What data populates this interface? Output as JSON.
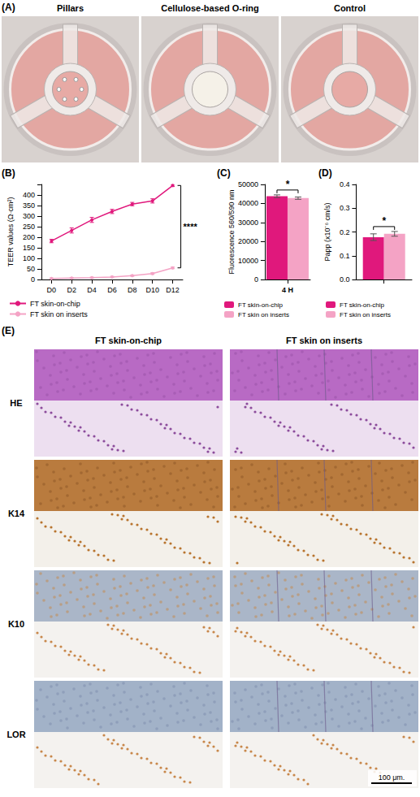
{
  "panel_labels": [
    "(A)",
    "(B)",
    "(C)",
    "(D)",
    "(E)"
  ],
  "photos": {
    "titles": [
      "Pillars",
      "Cellulose-based O-ring",
      "Control"
    ]
  },
  "chart_data": [
    {
      "type": "line",
      "categories": [
        "D0",
        "D2",
        "D4",
        "D6",
        "D8",
        "D10",
        "D12"
      ],
      "series": [
        {
          "name": "FT skin-on-chip",
          "color": "#e0187c",
          "values": [
            182,
            232,
            282,
            322,
            357,
            372,
            445
          ],
          "errors": [
            8,
            12,
            12,
            10,
            8,
            10,
            5
          ]
        },
        {
          "name": "FT skin on inserts",
          "color": "#f4a3c5",
          "values": [
            5,
            7,
            9,
            12,
            18,
            28,
            55
          ],
          "errors": [
            2,
            2,
            2,
            3,
            3,
            4,
            4
          ]
        }
      ],
      "ylim": [
        0,
        450
      ],
      "yticks": [
        0,
        50,
        100,
        150,
        200,
        250,
        300,
        350,
        400
      ],
      "y_label": "TEER values (Ω·cm²)",
      "annotations": [
        "****"
      ],
      "marker": "circle",
      "grid": false,
      "legend": "bottom"
    },
    {
      "type": "bar",
      "categories": [
        "4 H"
      ],
      "series": [
        {
          "name": "FT skin-on-chip",
          "color": "#e0187c",
          "values": [
            43800
          ],
          "errors": [
            700
          ]
        },
        {
          "name": "FT skin on inserts",
          "color": "#f4a3c5",
          "values": [
            42800
          ],
          "errors": [
            600
          ]
        }
      ],
      "ylim": [
        0,
        50000
      ],
      "yticks": [
        0,
        10000,
        20000,
        30000,
        40000,
        50000
      ],
      "y_label": "Fluorescence 560/590 nm",
      "annotations": [
        "*"
      ],
      "grid": false,
      "legend": "bottom"
    },
    {
      "type": "bar",
      "categories": [
        null
      ],
      "series": [
        {
          "name": "FT skin-on-chip",
          "color": "#e0187c",
          "values": [
            0.178
          ],
          "errors": [
            0.014
          ]
        },
        {
          "name": "FT skin on inserts",
          "color": "#f4a3c5",
          "values": [
            0.192
          ],
          "errors": [
            0.01
          ]
        }
      ],
      "ylim": [
        0,
        0.4
      ],
      "yticks": [
        {
          "value": 0,
          "label": "0.0"
        },
        0.1,
        0.2,
        0.3,
        0.4
      ],
      "y_label": "Papp (x10⁻⁶ cm/s)",
      "annotations": [
        "*"
      ],
      "grid": false,
      "legend": "bottom"
    }
  ],
  "histology": {
    "columns": [
      "FT skin-on-chip",
      "FT skin on inserts"
    ],
    "rows": [
      "HE",
      "K14",
      "K10",
      "LOR"
    ],
    "scale_bar": "100 μm."
  }
}
